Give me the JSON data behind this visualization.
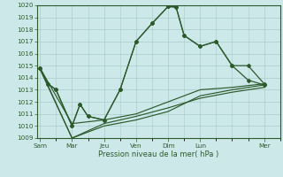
{
  "xlabel": "Pression niveau de la mer( hPa )",
  "background_color": "#cce8e8",
  "grid_color": "#aacccc",
  "line_color": "#2d5a2d",
  "ylim": [
    1009,
    1020
  ],
  "yticks": [
    1009,
    1010,
    1011,
    1012,
    1013,
    1014,
    1015,
    1016,
    1017,
    1018,
    1019,
    1020
  ],
  "day_labels": [
    "Sam",
    "Mar",
    "Jeu",
    "Ven",
    "Dim",
    "Lun",
    "Mer"
  ],
  "day_positions": [
    0,
    2,
    4,
    6,
    8,
    10,
    14
  ],
  "xlim": [
    -0.2,
    15.0
  ],
  "line1_x": [
    0,
    0.5,
    1,
    2,
    2.5,
    3,
    4,
    5,
    6,
    7,
    8,
    8.5,
    9,
    10,
    11,
    12,
    13,
    14
  ],
  "line1_y": [
    1014.8,
    1013.5,
    1013.0,
    1010.0,
    1011.8,
    1010.8,
    1010.5,
    1013.0,
    1017.0,
    1018.5,
    1019.9,
    1019.85,
    1017.5,
    1016.6,
    1017.0,
    1015.0,
    1015.0,
    1013.5
  ],
  "line2_x": [
    0,
    0.5,
    1,
    2,
    2.5,
    3,
    4,
    5,
    6,
    7,
    8,
    8.5,
    9,
    10,
    11,
    12,
    13,
    14
  ],
  "line2_y": [
    1014.8,
    1013.5,
    1013.0,
    1010.0,
    1011.8,
    1010.8,
    1010.5,
    1013.0,
    1017.0,
    1018.5,
    1019.9,
    1019.85,
    1017.5,
    1016.6,
    1017.0,
    1015.0,
    1013.8,
    1013.4
  ],
  "line3_x": [
    0,
    2,
    4,
    6,
    8,
    10,
    12,
    14
  ],
  "line3_y": [
    1014.8,
    1010.2,
    1010.5,
    1011.0,
    1012.0,
    1013.0,
    1013.2,
    1013.5
  ],
  "line4_x": [
    0,
    2,
    4,
    6,
    8,
    10,
    12,
    14
  ],
  "line4_y": [
    1014.8,
    1009.0,
    1010.2,
    1010.8,
    1011.5,
    1012.3,
    1012.8,
    1013.2
  ],
  "line5_x": [
    0,
    2,
    4,
    6,
    8,
    10,
    12,
    14
  ],
  "line5_y": [
    1014.7,
    1009.0,
    1010.0,
    1010.5,
    1011.2,
    1012.5,
    1013.0,
    1013.4
  ],
  "marker1_x": [
    0,
    2,
    4,
    6,
    8,
    10,
    12,
    14
  ],
  "marker1_y": [
    1014.8,
    1010.0,
    1010.5,
    1017.0,
    1019.9,
    1016.6,
    1015.0,
    1013.5
  ],
  "marker2_x": [
    0,
    2,
    4,
    6,
    8,
    10,
    12,
    14
  ],
  "marker2_y": [
    1014.8,
    1010.0,
    1010.5,
    1017.0,
    1019.9,
    1016.6,
    1015.0,
    1013.4
  ]
}
